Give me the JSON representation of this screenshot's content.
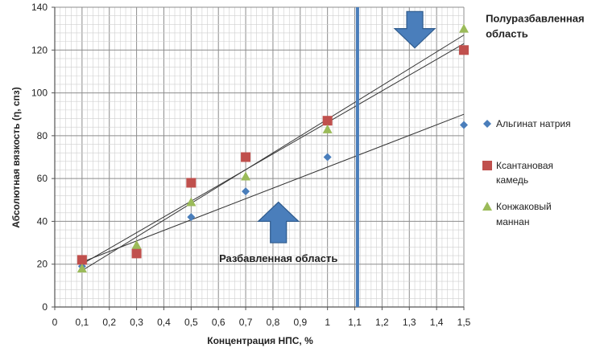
{
  "chart_data": {
    "type": "scatter",
    "xlabel": "Концентрация НПС, %",
    "ylabel": "Абсолютная вязкость (η, спз)",
    "xlim": [
      0,
      1.5
    ],
    "ylim": [
      0,
      140
    ],
    "x_ticks": [
      "0",
      "0,1",
      "0,2",
      "0,3",
      "0,4",
      "0,5",
      "0,6",
      "0,7",
      "0,8",
      "0,9",
      "1",
      "1,1",
      "1,2",
      "1,3",
      "1,4",
      "1,5"
    ],
    "y_ticks": [
      "0",
      "20",
      "40",
      "60",
      "80",
      "100",
      "120",
      "140"
    ],
    "grid": true,
    "legend_position": "right",
    "series": [
      {
        "name": "Альгинат натрия",
        "marker": "diamond",
        "color": "#4a7ebb",
        "x": [
          0.1,
          0.3,
          0.5,
          0.7,
          1.0,
          1.5
        ],
        "y": [
          19,
          27,
          42,
          54,
          70,
          85
        ]
      },
      {
        "name": "Ксантановая камедь",
        "marker": "square",
        "color": "#c0504d",
        "x": [
          0.1,
          0.3,
          0.5,
          0.7,
          1.0,
          1.5
        ],
        "y": [
          22,
          25,
          58,
          70,
          87,
          120
        ]
      },
      {
        "name": "Конжаковый маннан",
        "marker": "triangle",
        "color": "#9bbb59",
        "x": [
          0.1,
          0.3,
          0.5,
          0.7,
          1.0,
          1.5
        ],
        "y": [
          18,
          29,
          49,
          61,
          83,
          130
        ]
      }
    ],
    "trend_lines": [
      {
        "x": [
          0.1,
          1.5
        ],
        "y": [
          21,
          90
        ]
      },
      {
        "x": [
          0.1,
          1.5
        ],
        "y": [
          17,
          127
        ]
      },
      {
        "x": [
          0.1,
          1.5
        ],
        "y": [
          20,
          123
        ]
      }
    ],
    "vertical_marker": {
      "x": 1.11,
      "color": "#4a7ebb"
    },
    "annotations": [
      {
        "text": "Разбавленная область",
        "x": 0.82,
        "y": 21
      },
      {
        "text": "Полуразбавленная",
        "x": 1.58,
        "y": 133
      },
      {
        "text": "область",
        "x": 1.58,
        "y": 126
      }
    ],
    "arrows": [
      {
        "direction": "up",
        "x": 0.82,
        "y_tip": 49,
        "y_base": 30,
        "color": "#4a7ebb"
      },
      {
        "direction": "down",
        "x": 1.32,
        "y_tip": 121,
        "y_base": 138,
        "color": "#4a7ebb"
      }
    ]
  }
}
